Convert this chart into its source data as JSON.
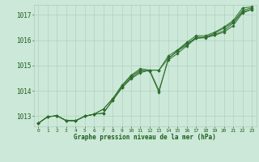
{
  "bg_color": "#cce8d8",
  "line_color": "#2d6e2d",
  "grid_color": "#aaccb8",
  "xlabel": "Graphe pression niveau de la mer (hPa)",
  "xlabel_color": "#1a5c1a",
  "tick_color": "#1a5c1a",
  "xlim": [
    -0.5,
    23.5
  ],
  "ylim": [
    1012.6,
    1017.4
  ],
  "yticks": [
    1013,
    1014,
    1015,
    1016,
    1017
  ],
  "xticks": [
    0,
    1,
    2,
    3,
    4,
    5,
    6,
    7,
    8,
    9,
    10,
    11,
    12,
    13,
    14,
    15,
    16,
    17,
    18,
    19,
    20,
    21,
    22,
    23
  ],
  "series": [
    [
      1012.72,
      1012.98,
      1013.02,
      1012.83,
      1012.82,
      1013.0,
      1013.08,
      1013.12,
      1013.62,
      1014.12,
      1014.48,
      1014.72,
      1014.82,
      1014.02,
      1015.22,
      1015.48,
      1015.78,
      1016.08,
      1016.1,
      1016.2,
      1016.32,
      1016.58,
      1017.08,
      1017.22
    ],
    [
      1012.72,
      1012.98,
      1013.02,
      1012.83,
      1012.82,
      1013.0,
      1013.08,
      1013.12,
      1013.62,
      1014.12,
      1014.52,
      1014.78,
      1014.82,
      1014.82,
      1015.28,
      1015.58,
      1015.82,
      1016.12,
      1016.12,
      1016.22,
      1016.38,
      1016.68,
      1017.12,
      1017.22
    ],
    [
      1012.72,
      1012.98,
      1013.02,
      1012.83,
      1012.82,
      1013.0,
      1013.08,
      1013.28,
      1013.68,
      1014.18,
      1014.58,
      1014.82,
      1014.78,
      1013.95,
      1015.28,
      1015.58,
      1015.88,
      1016.08,
      1016.12,
      1016.28,
      1016.48,
      1016.72,
      1017.18,
      1017.28
    ],
    [
      1012.72,
      1012.98,
      1013.02,
      1012.83,
      1012.82,
      1013.0,
      1013.08,
      1013.28,
      1013.68,
      1014.22,
      1014.62,
      1014.88,
      1014.82,
      1014.82,
      1015.38,
      1015.62,
      1015.92,
      1016.18,
      1016.18,
      1016.32,
      1016.52,
      1016.78,
      1017.28,
      1017.32
    ]
  ]
}
